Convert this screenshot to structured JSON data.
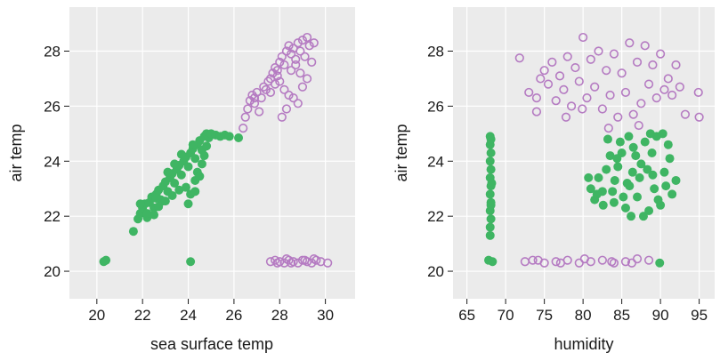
{
  "chart_data": [
    {
      "type": "scatter",
      "xlabel": "sea surface temp",
      "ylabel": "air temp",
      "xlim": [
        18.8,
        31.3
      ],
      "ylim": [
        19.0,
        29.6
      ],
      "xticks": [
        20,
        22,
        24,
        26,
        28,
        30
      ],
      "yticks": [
        20,
        22,
        24,
        26,
        28
      ],
      "grid": true,
      "series": [
        {
          "marker": "filled",
          "color": "#3fb563",
          "points": [
            [
              20.3,
              20.35
            ],
            [
              20.4,
              20.4
            ],
            [
              24.1,
              20.35
            ],
            [
              21.6,
              21.45
            ],
            [
              21.8,
              21.9
            ],
            [
              21.9,
              22.1
            ],
            [
              22.0,
              22.3
            ],
            [
              22.1,
              22.45
            ],
            [
              22.2,
              21.95
            ],
            [
              22.3,
              22.5
            ],
            [
              22.4,
              22.7
            ],
            [
              22.5,
              22.3
            ],
            [
              22.6,
              22.8
            ],
            [
              22.7,
              22.95
            ],
            [
              22.8,
              22.6
            ],
            [
              22.9,
              23.1
            ],
            [
              23.0,
              23.25
            ],
            [
              23.1,
              22.9
            ],
            [
              23.2,
              23.4
            ],
            [
              23.3,
              23.55
            ],
            [
              23.4,
              23.2
            ],
            [
              23.5,
              23.7
            ],
            [
              23.6,
              23.85
            ],
            [
              23.7,
              23.5
            ],
            [
              23.8,
              24.0
            ],
            [
              23.9,
              24.15
            ],
            [
              24.0,
              23.8
            ],
            [
              24.1,
              24.3
            ],
            [
              24.2,
              24.45
            ],
            [
              24.3,
              24.1
            ],
            [
              24.4,
              24.6
            ],
            [
              24.5,
              24.75
            ],
            [
              24.6,
              24.4
            ],
            [
              24.7,
              24.9
            ],
            [
              24.8,
              25.0
            ],
            [
              24.9,
              24.85
            ],
            [
              25.0,
              25.0
            ],
            [
              25.2,
              24.95
            ],
            [
              25.4,
              24.9
            ],
            [
              25.6,
              24.95
            ],
            [
              25.8,
              24.9
            ],
            [
              26.2,
              24.85
            ],
            [
              22.2,
              22.1
            ],
            [
              22.5,
              22.05
            ],
            [
              22.9,
              22.55
            ],
            [
              23.3,
              22.75
            ],
            [
              23.6,
              22.95
            ],
            [
              23.9,
              23.05
            ],
            [
              24.0,
              22.45
            ],
            [
              24.1,
              22.8
            ],
            [
              24.3,
              23.3
            ],
            [
              24.4,
              23.6
            ],
            [
              24.6,
              23.9
            ],
            [
              24.7,
              24.2
            ],
            [
              24.3,
              22.9
            ],
            [
              24.5,
              23.45
            ],
            [
              23.0,
              22.55
            ],
            [
              22.7,
              22.35
            ],
            [
              21.9,
              22.45
            ],
            [
              23.4,
              23.9
            ],
            [
              23.7,
              24.25
            ],
            [
              24.2,
              24.6
            ],
            [
              23.1,
              23.6
            ],
            [
              22.6,
              22.65
            ],
            [
              24.8,
              24.55
            ]
          ]
        },
        {
          "marker": "open",
          "color": "#b57bc2",
          "points": [
            [
              26.4,
              25.2
            ],
            [
              26.5,
              25.6
            ],
            [
              26.6,
              25.9
            ],
            [
              26.7,
              26.2
            ],
            [
              26.8,
              26.4
            ],
            [
              26.9,
              26.1
            ],
            [
              27.0,
              26.5
            ],
            [
              27.1,
              25.8
            ],
            [
              27.2,
              26.3
            ],
            [
              27.4,
              26.6
            ],
            [
              27.5,
              26.9
            ],
            [
              27.6,
              27.0
            ],
            [
              27.7,
              27.2
            ],
            [
              27.8,
              27.4
            ],
            [
              27.9,
              27.1
            ],
            [
              28.0,
              27.6
            ],
            [
              28.1,
              27.8
            ],
            [
              28.2,
              27.5
            ],
            [
              28.3,
              28.0
            ],
            [
              28.4,
              28.2
            ],
            [
              28.5,
              27.9
            ],
            [
              28.6,
              28.1
            ],
            [
              28.7,
              27.7
            ],
            [
              28.8,
              28.3
            ],
            [
              28.9,
              28.0
            ],
            [
              29.0,
              28.4
            ],
            [
              29.1,
              27.8
            ],
            [
              29.2,
              28.5
            ],
            [
              29.3,
              28.2
            ],
            [
              29.5,
              28.3
            ],
            [
              27.6,
              26.5
            ],
            [
              27.8,
              26.8
            ],
            [
              28.0,
              26.9
            ],
            [
              28.2,
              26.6
            ],
            [
              28.4,
              26.4
            ],
            [
              28.6,
              26.3
            ],
            [
              28.8,
              26.1
            ],
            [
              29.0,
              26.7
            ],
            [
              29.2,
              27.0
            ],
            [
              28.1,
              25.6
            ],
            [
              28.3,
              25.9
            ],
            [
              27.9,
              27.3
            ],
            [
              28.5,
              27.3
            ],
            [
              28.7,
              27.5
            ],
            [
              29.4,
              27.6
            ],
            [
              26.9,
              26.3
            ],
            [
              27.3,
              26.7
            ],
            [
              28.9,
              27.2
            ],
            [
              27.8,
              20.4
            ],
            [
              28.0,
              20.35
            ],
            [
              28.2,
              20.3
            ],
            [
              28.4,
              20.4
            ],
            [
              28.6,
              20.35
            ],
            [
              28.8,
              20.3
            ],
            [
              29.0,
              20.4
            ],
            [
              29.2,
              20.35
            ],
            [
              29.4,
              20.3
            ],
            [
              29.6,
              20.4
            ],
            [
              29.8,
              20.35
            ],
            [
              30.1,
              20.3
            ],
            [
              27.6,
              20.35
            ],
            [
              27.9,
              20.3
            ],
            [
              28.5,
              20.3
            ],
            [
              29.1,
              20.4
            ],
            [
              29.5,
              20.45
            ],
            [
              28.3,
              20.45
            ]
          ]
        }
      ]
    },
    {
      "type": "scatter",
      "xlabel": "humidity",
      "ylabel": "air temp",
      "xlim": [
        63.2,
        97.0
      ],
      "ylim": [
        19.0,
        29.6
      ],
      "xticks": [
        65,
        70,
        75,
        80,
        85,
        90,
        95
      ],
      "yticks": [
        20,
        22,
        24,
        26,
        28
      ],
      "grid": true,
      "series": [
        {
          "marker": "filled",
          "color": "#3fb563",
          "points": [
            [
              68.0,
              24.9
            ],
            [
              68.0,
              24.6
            ],
            [
              68.1,
              24.3
            ],
            [
              68.0,
              24.0
            ],
            [
              68.1,
              23.7
            ],
            [
              68.0,
              23.4
            ],
            [
              68.1,
              23.1
            ],
            [
              68.0,
              22.8
            ],
            [
              68.1,
              22.5
            ],
            [
              68.0,
              22.2
            ],
            [
              68.1,
              21.9
            ],
            [
              68.0,
              21.6
            ],
            [
              68.0,
              21.3
            ],
            [
              68.1,
              24.8
            ],
            [
              68.2,
              23.2
            ],
            [
              68.1,
              22.4
            ],
            [
              67.8,
              20.4
            ],
            [
              68.3,
              20.35
            ],
            [
              89.9,
              20.3
            ],
            [
              81.0,
              23.0
            ],
            [
              81.5,
              22.6
            ],
            [
              82.0,
              23.4
            ],
            [
              82.5,
              22.9
            ],
            [
              83.0,
              23.7
            ],
            [
              83.5,
              24.2
            ],
            [
              84.0,
              22.5
            ],
            [
              84.5,
              23.8
            ],
            [
              85.0,
              24.3
            ],
            [
              85.5,
              22.3
            ],
            [
              86.0,
              23.1
            ],
            [
              86.5,
              24.5
            ],
            [
              87.0,
              22.7
            ],
            [
              87.5,
              23.9
            ],
            [
              88.0,
              24.7
            ],
            [
              88.5,
              22.2
            ],
            [
              89.0,
              23.5
            ],
            [
              89.5,
              24.9
            ],
            [
              90.0,
              22.4
            ],
            [
              90.5,
              23.6
            ],
            [
              91.0,
              24.6
            ],
            [
              91.5,
              22.8
            ],
            [
              92.0,
              23.3
            ],
            [
              83.2,
              24.8
            ],
            [
              84.8,
              24.7
            ],
            [
              86.2,
              22.0
            ],
            [
              88.7,
              25.0
            ],
            [
              90.3,
              25.0
            ],
            [
              82.6,
              22.4
            ],
            [
              87.8,
              22.0
            ],
            [
              84.1,
              23.3
            ],
            [
              85.7,
              23.2
            ],
            [
              87.3,
              23.4
            ],
            [
              89.2,
              23.0
            ],
            [
              90.7,
              23.1
            ],
            [
              86.8,
              24.2
            ],
            [
              85.2,
              22.7
            ],
            [
              88.3,
              23.7
            ],
            [
              83.8,
              22.9
            ],
            [
              89.7,
              22.6
            ],
            [
              86.4,
              23.6
            ],
            [
              91.2,
              24.1
            ],
            [
              81.8,
              22.8
            ],
            [
              80.7,
              23.4
            ],
            [
              84.4,
              24.1
            ],
            [
              88.9,
              24.3
            ],
            [
              85.9,
              24.9
            ]
          ]
        },
        {
          "marker": "open",
          "color": "#b57bc2",
          "points": [
            [
              71.8,
              27.75
            ],
            [
              73.0,
              26.5
            ],
            [
              74.0,
              26.3
            ],
            [
              74.5,
              27.0
            ],
            [
              75.0,
              27.3
            ],
            [
              75.5,
              26.8
            ],
            [
              76.0,
              27.6
            ],
            [
              76.5,
              26.2
            ],
            [
              77.0,
              27.1
            ],
            [
              77.5,
              26.6
            ],
            [
              78.0,
              27.8
            ],
            [
              78.5,
              26.0
            ],
            [
              79.0,
              27.4
            ],
            [
              79.5,
              26.9
            ],
            [
              80.0,
              28.5
            ],
            [
              80.5,
              26.3
            ],
            [
              81.0,
              27.7
            ],
            [
              81.5,
              26.7
            ],
            [
              82.0,
              28.0
            ],
            [
              82.5,
              25.9
            ],
            [
              83.0,
              27.3
            ],
            [
              83.5,
              26.4
            ],
            [
              84.0,
              27.9
            ],
            [
              84.5,
              25.6
            ],
            [
              85.0,
              27.2
            ],
            [
              85.5,
              26.5
            ],
            [
              86.0,
              28.3
            ],
            [
              86.5,
              25.7
            ],
            [
              87.0,
              27.6
            ],
            [
              87.5,
              26.1
            ],
            [
              88.0,
              28.2
            ],
            [
              88.5,
              26.8
            ],
            [
              89.0,
              27.5
            ],
            [
              89.5,
              26.3
            ],
            [
              90.0,
              27.9
            ],
            [
              90.5,
              26.6
            ],
            [
              91.0,
              27.0
            ],
            [
              91.5,
              26.4
            ],
            [
              92.0,
              27.5
            ],
            [
              92.5,
              26.7
            ],
            [
              94.9,
              26.5
            ],
            [
              95.0,
              25.6
            ],
            [
              93.2,
              25.7
            ],
            [
              74.0,
              25.8
            ],
            [
              77.8,
              25.6
            ],
            [
              79.9,
              25.9
            ],
            [
              83.3,
              25.2
            ],
            [
              87.2,
              25.3
            ],
            [
              72.5,
              20.35
            ],
            [
              73.5,
              20.4
            ],
            [
              75.0,
              20.3
            ],
            [
              76.5,
              20.35
            ],
            [
              78.0,
              20.4
            ],
            [
              79.5,
              20.3
            ],
            [
              81.0,
              20.35
            ],
            [
              82.5,
              20.4
            ],
            [
              84.0,
              20.3
            ],
            [
              85.5,
              20.35
            ],
            [
              87.0,
              20.45
            ],
            [
              88.5,
              20.4
            ],
            [
              74.2,
              20.4
            ],
            [
              77.1,
              20.3
            ],
            [
              80.2,
              20.45
            ],
            [
              83.7,
              20.35
            ],
            [
              86.3,
              20.3
            ]
          ]
        }
      ]
    }
  ]
}
